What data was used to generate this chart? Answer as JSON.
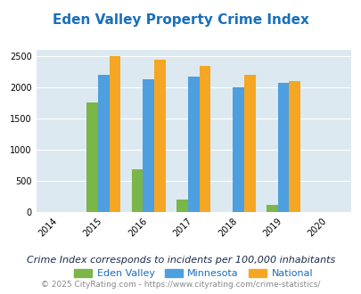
{
  "title": "Eden Valley Property Crime Index",
  "years": [
    2015,
    2016,
    2017,
    2018,
    2019
  ],
  "x_ticks": [
    2014,
    2015,
    2016,
    2017,
    2018,
    2019,
    2020
  ],
  "eden_valley": [
    1750,
    675,
    200,
    0,
    110
  ],
  "minnesota": [
    2200,
    2125,
    2175,
    2000,
    2075
  ],
  "national": [
    2500,
    2450,
    2350,
    2200,
    2100
  ],
  "color_eden": "#7ab648",
  "color_minnesota": "#4d9fdf",
  "color_national": "#f5a623",
  "ylim": [
    0,
    2600
  ],
  "yticks": [
    0,
    500,
    1000,
    1500,
    2000,
    2500
  ],
  "bg_color": "#dce9f0",
  "title_color": "#1a6fba",
  "subtitle": "Crime Index corresponds to incidents per 100,000 inhabitants",
  "footer": "© 2025 CityRating.com - https://www.cityrating.com/crime-statistics/",
  "legend_labels": [
    "Eden Valley",
    "Minnesota",
    "National"
  ],
  "bar_width": 0.25,
  "title_fontsize": 11,
  "tick_fontsize": 7,
  "legend_fontsize": 8,
  "subtitle_fontsize": 8,
  "footer_fontsize": 6.5,
  "subtitle_color": "#1a2a4a",
  "footer_color": "#888888"
}
